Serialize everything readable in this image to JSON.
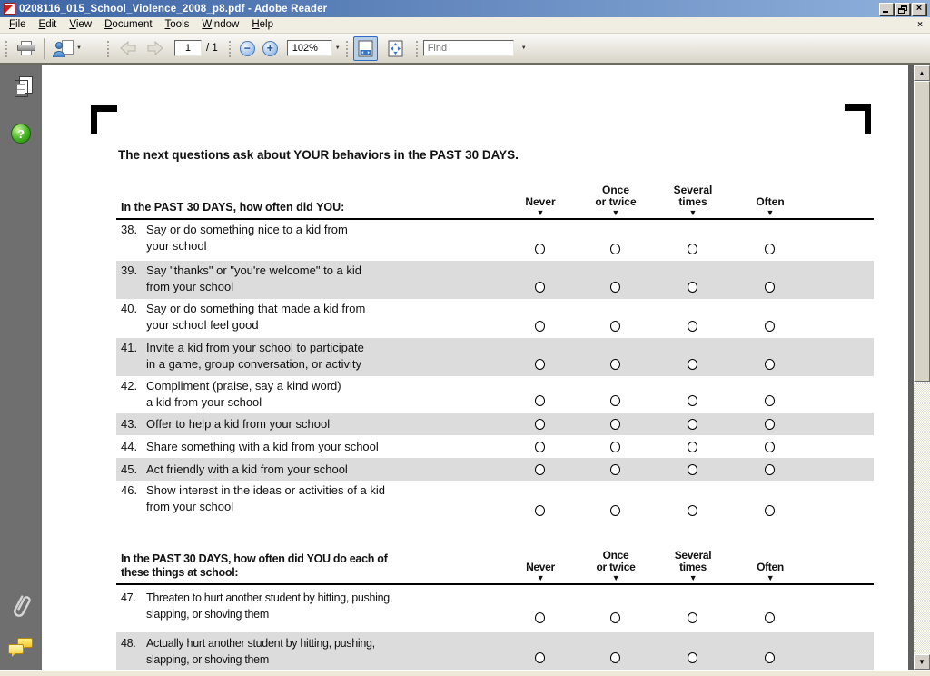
{
  "window": {
    "title": "0208116_015_School_Violence_2008_p8.pdf - Adobe Reader"
  },
  "menu": {
    "items": [
      "File",
      "Edit",
      "View",
      "Document",
      "Tools",
      "Window",
      "Help"
    ]
  },
  "toolbar": {
    "page_value": "1",
    "page_total_label": "/ 1",
    "zoom_value": "102%",
    "find_placeholder": "Find"
  },
  "icons": {
    "close_glyph": "×",
    "menubar_close_glyph": "×",
    "zoom_out_glyph": "−",
    "zoom_in_glyph": "+",
    "scroll_up_glyph": "▲",
    "scroll_down_glyph": "▼",
    "dropdown_glyph": "▼",
    "help_glyph": "?",
    "column_marker_glyph": "▼"
  },
  "colors": {
    "titlebar_left": "#3c64a4",
    "titlebar_right": "#8fb0dc",
    "row_shade": "#dcdcdc",
    "sidebar_bg": "#6f6f6f",
    "selected_tool_bg": "#b8cfe8",
    "selected_tool_border": "#316ac5"
  },
  "document": {
    "heading": "The next questions ask about YOUR behaviors in the PAST 30 DAYS.",
    "response_columns": [
      {
        "lines": [
          "Never"
        ]
      },
      {
        "lines": [
          "Once",
          "or twice"
        ]
      },
      {
        "lines": [
          "Several",
          "times"
        ]
      },
      {
        "lines": [
          "Often"
        ]
      }
    ],
    "tables": [
      {
        "prompt_lines": [
          "In the PAST 30 DAYS, how often did YOU:"
        ],
        "questions": [
          {
            "number": "38.",
            "lines": [
              "Say or do something nice to a kid from",
              "your school"
            ],
            "shaded": false
          },
          {
            "number": "39.",
            "lines": [
              "Say \"thanks\" or \"you're welcome\" to a kid",
              "from your school"
            ],
            "shaded": true
          },
          {
            "number": "40.",
            "lines": [
              "Say or do something that made a kid from",
              "your school feel good"
            ],
            "shaded": false
          },
          {
            "number": "41.",
            "lines": [
              "Invite a kid from your school to participate",
              "in a game, group conversation, or activity"
            ],
            "shaded": true
          },
          {
            "number": "42.",
            "lines": [
              "Compliment (praise, say a kind word)",
              "a kid from your school"
            ],
            "shaded": false
          },
          {
            "number": "43.",
            "lines": [
              "Offer to help a kid from your school"
            ],
            "shaded": true
          },
          {
            "number": "44.",
            "lines": [
              "Share something with a kid from your school"
            ],
            "shaded": false
          },
          {
            "number": "45.",
            "lines": [
              "Act friendly with a kid from your school"
            ],
            "shaded": true
          },
          {
            "number": "46.",
            "lines": [
              "Show interest in the ideas or activities of a kid",
              "from your school"
            ],
            "shaded": false
          }
        ]
      },
      {
        "prompt_lines": [
          "In the PAST 30 DAYS, how often did YOU do each of",
          "these things at school:"
        ],
        "questions": [
          {
            "number": "47.",
            "lines": [
              "Threaten to hurt another student by hitting, pushing,",
              "slapping, or shoving them"
            ],
            "shaded": false
          },
          {
            "number": "48.",
            "lines": [
              "Actually hurt another student by hitting, pushing,",
              "slapping, or shoving them"
            ],
            "shaded": true
          }
        ]
      }
    ]
  }
}
